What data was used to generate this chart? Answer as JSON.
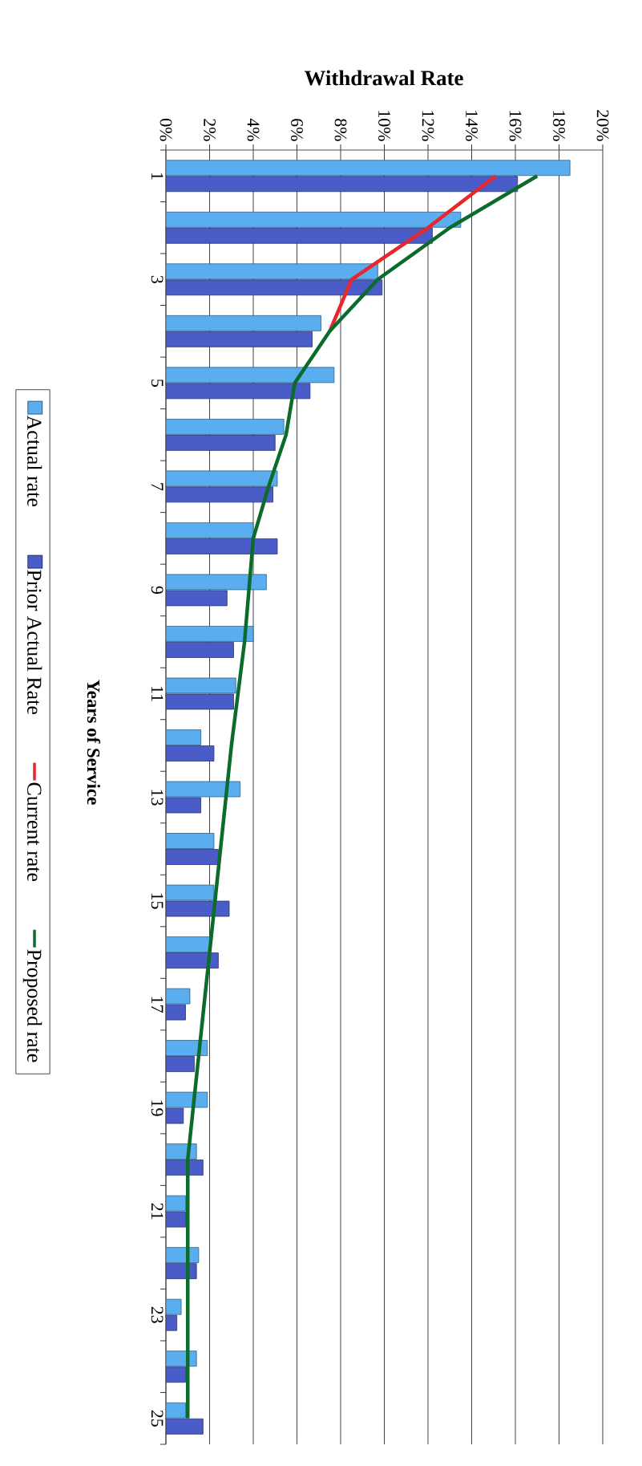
{
  "chart_data": {
    "type": "bar",
    "orientation": "horizontal",
    "xlabel": "Withdrawal Rate",
    "ylabel": "Years of Service",
    "categories": [
      "1",
      null,
      "3",
      null,
      "5",
      null,
      "7",
      null,
      "9",
      null,
      "11",
      null,
      "13",
      null,
      "15",
      null,
      "17",
      null,
      "19",
      null,
      "21",
      null,
      "23",
      null,
      "25"
    ],
    "series": [
      {
        "name": "Actual rate",
        "color": "#5aaef0",
        "values": [
          18.5,
          13.5,
          9.7,
          7.1,
          7.7,
          5.4,
          5.1,
          4.0,
          4.6,
          4.0,
          3.2,
          1.6,
          3.4,
          2.2,
          2.2,
          2.0,
          1.1,
          1.9,
          1.9,
          1.4,
          0.9,
          1.5,
          0.7,
          1.4,
          0.9
        ]
      },
      {
        "name": "Prior Actual Rate",
        "color": "#4a5cc8",
        "values": [
          16.1,
          12.2,
          9.9,
          6.7,
          6.6,
          5.0,
          4.9,
          5.1,
          2.8,
          3.1,
          3.1,
          2.2,
          1.6,
          2.4,
          2.9,
          2.4,
          0.9,
          1.3,
          0.8,
          1.7,
          0.9,
          1.4,
          0.5,
          0.9,
          1.7
        ]
      },
      {
        "name": "Current rate",
        "type": "line",
        "color": "#e8262c",
        "values": [
          15.1,
          12.0,
          8.5,
          7.5,
          null,
          null,
          null,
          null,
          null,
          null,
          null,
          null,
          null,
          null,
          null,
          null,
          null,
          null,
          null,
          null,
          null,
          null,
          null,
          null,
          null
        ]
      },
      {
        "name": "Proposed rate",
        "type": "line",
        "color": "#0b6b2b",
        "values": [
          17.0,
          13.0,
          9.7,
          7.5,
          5.9,
          5.5,
          4.7,
          4.0,
          3.8,
          3.6,
          3.3,
          3.0,
          2.75,
          2.5,
          2.25,
          2.0,
          1.75,
          1.5,
          1.25,
          1.0,
          1.0,
          1.0,
          1.0,
          1.0,
          1.0
        ]
      }
    ],
    "xlim": [
      0,
      20
    ],
    "xticks": [
      {
        "value": 0,
        "label": "0%"
      },
      {
        "value": 2,
        "label": "2%"
      },
      {
        "value": 4,
        "label": "4%"
      },
      {
        "value": 6,
        "label": "6%"
      },
      {
        "value": 8,
        "label": "8%"
      },
      {
        "value": 10,
        "label": "10%"
      },
      {
        "value": 12,
        "label": "12%"
      },
      {
        "value": 14,
        "label": "14%"
      },
      {
        "value": 16,
        "label": "16%"
      },
      {
        "value": 18,
        "label": "18%"
      },
      {
        "value": 20,
        "label": "20%"
      }
    ],
    "grid": "x",
    "legend": "left"
  }
}
